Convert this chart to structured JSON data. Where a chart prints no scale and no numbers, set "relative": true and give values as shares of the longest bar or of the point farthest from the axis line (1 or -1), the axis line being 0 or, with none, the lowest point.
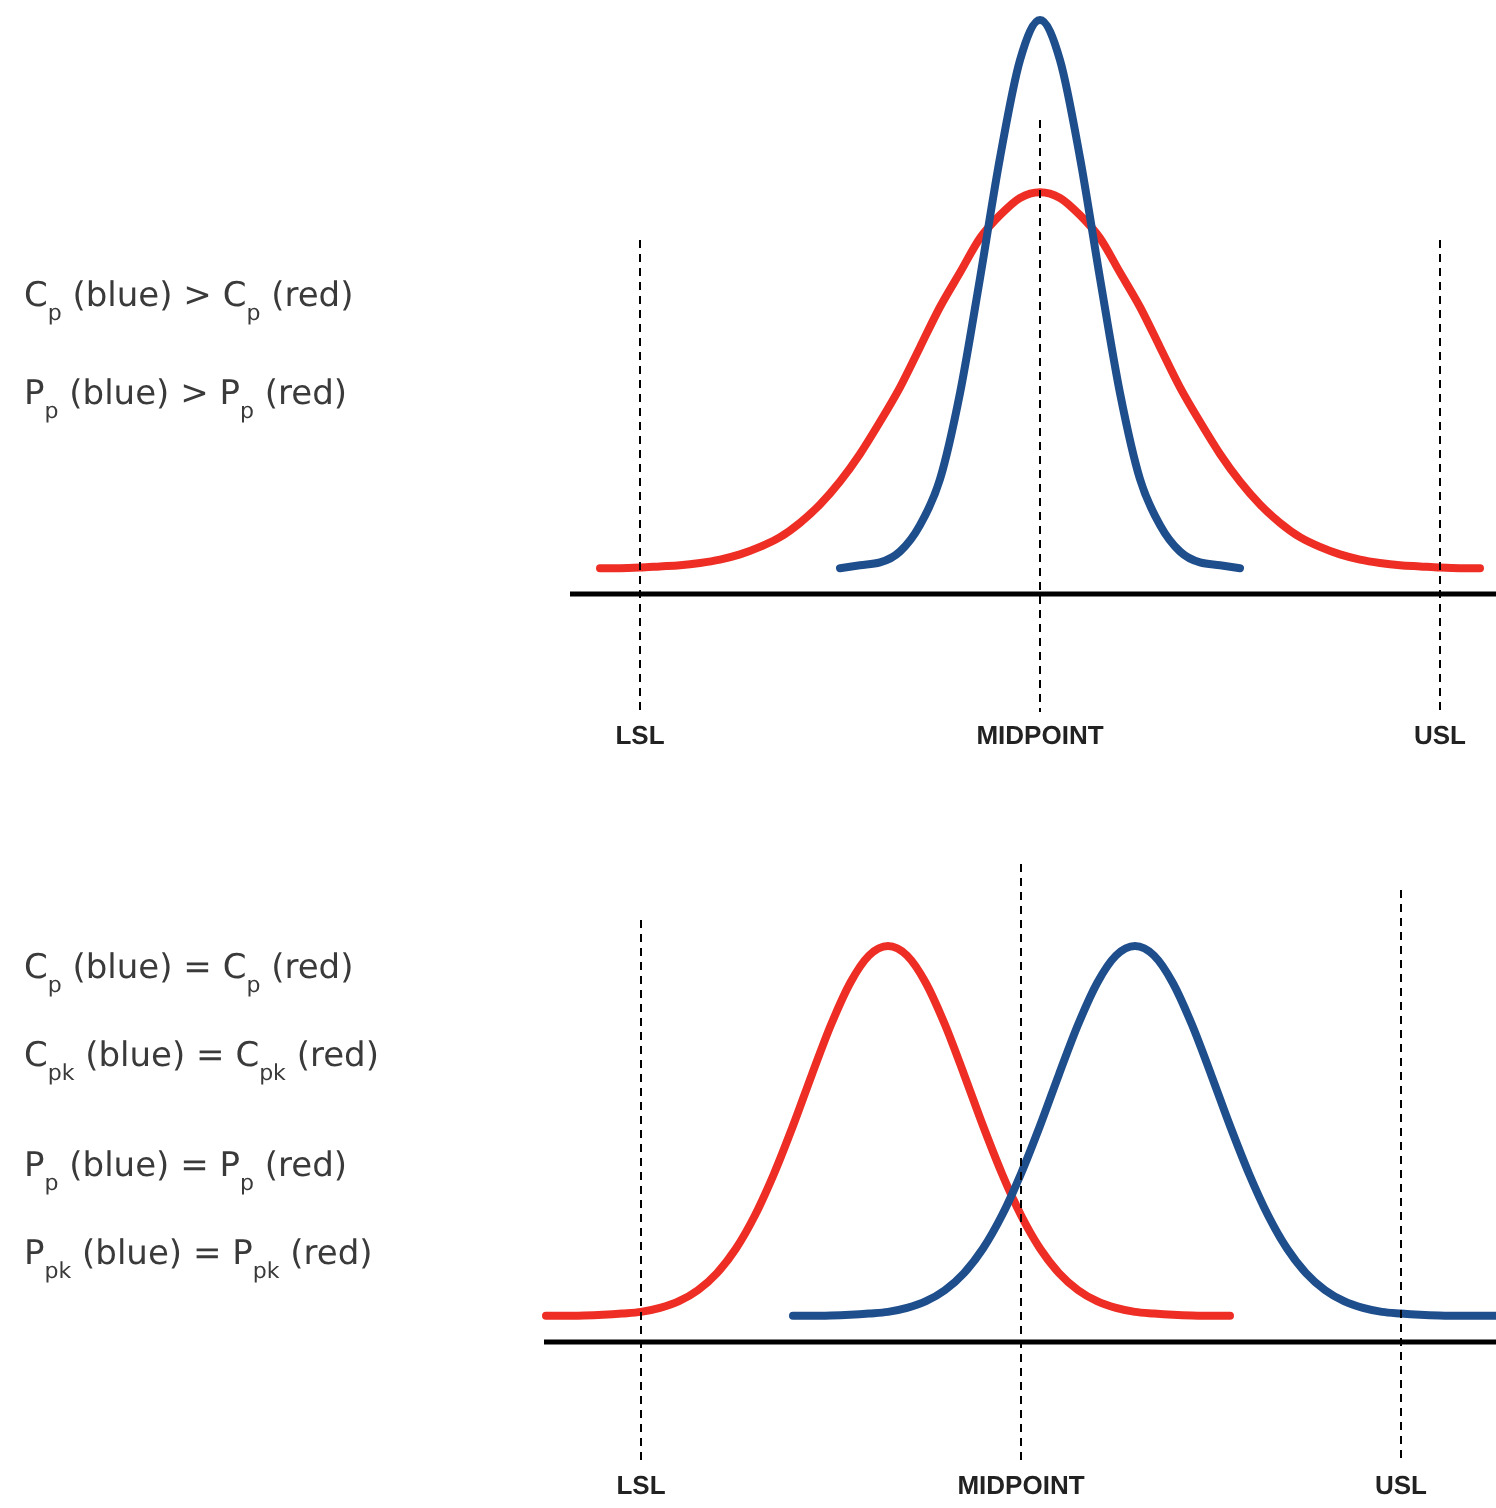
{
  "chart_data": [
    {
      "type": "line",
      "relative": true,
      "line_style": "solid",
      "marker": "none",
      "categories": [
        null,
        null,
        "LSL",
        null,
        null,
        null,
        null,
        null,
        null,
        null,
        null,
        null,
        null,
        null,
        null,
        null,
        null,
        null,
        null,
        null,
        null,
        null,
        "MIDPOINT",
        null,
        null,
        null,
        null,
        null,
        null,
        null,
        null,
        null,
        null,
        null,
        null,
        null,
        null,
        null,
        null,
        null,
        null,
        null,
        "USL",
        null,
        null
      ],
      "series": [
        {
          "color": "#ee2e24",
          "values": [
            0.045,
            0.045,
            0.046,
            0.048,
            0.05,
            0.054,
            0.06,
            0.069,
            0.082,
            0.099,
            0.124,
            0.156,
            0.196,
            0.244,
            0.3,
            0.36,
            0.43,
            0.5,
            0.56,
            0.62,
            0.66,
            0.69,
            0.7,
            0.69,
            0.66,
            0.62,
            0.56,
            0.5,
            0.43,
            0.36,
            0.3,
            0.244,
            0.196,
            0.156,
            0.124,
            0.099,
            0.082,
            0.069,
            0.06,
            0.054,
            0.05,
            0.048,
            0.046,
            0.045,
            0.045
          ]
        },
        {
          "color": "#1f4e8c",
          "values": [
            null,
            null,
            null,
            null,
            null,
            null,
            null,
            null,
            null,
            null,
            null,
            null,
            0.045,
            0.05,
            0.055,
            0.074,
            0.12,
            0.2,
            0.35,
            0.55,
            0.76,
            0.93,
            1,
            0.93,
            0.76,
            0.55,
            0.35,
            0.2,
            0.12,
            0.074,
            0.055,
            0.05,
            0.045,
            null,
            null,
            null,
            null,
            null,
            null,
            null,
            null,
            null,
            null,
            null,
            null
          ]
        }
      ],
      "ref_lines": [
        {
          "axis": "x",
          "value": "LSL",
          "color": "#000000",
          "line_style": "dashed"
        },
        {
          "axis": "x",
          "value": "MIDPOINT",
          "color": "#000000",
          "line_style": "dashed"
        },
        {
          "axis": "x",
          "value": "USL",
          "color": "#000000",
          "line_style": "dashed"
        }
      ],
      "annotations": [
        "C$_{p}$ (blue) > C$_{p}$ (red)",
        "P$_{p}$ (blue) > P$_{p}$ (red)"
      ]
    },
    {
      "type": "line",
      "relative": true,
      "line_style": "solid",
      "marker": "none",
      "categories": [
        null,
        null,
        null,
        null,
        null,
        "LSL",
        null,
        null,
        null,
        null,
        null,
        null,
        null,
        null,
        null,
        null,
        null,
        null,
        null,
        null,
        null,
        null,
        null,
        null,
        null,
        "MIDPOINT",
        null,
        null,
        null,
        null,
        null,
        null,
        null,
        null,
        null,
        null,
        null,
        null,
        null,
        null,
        null,
        null,
        null,
        null,
        null,
        "USL",
        null,
        null,
        null,
        null,
        null
      ],
      "series": [
        {
          "color": "#ee2e24",
          "values": [
            0.066,
            0.066,
            0.067,
            0.069,
            0.072,
            0.076,
            0.086,
            0.103,
            0.131,
            0.174,
            0.236,
            0.32,
            0.425,
            0.546,
            0.676,
            0.801,
            0.906,
            0.976,
            1,
            0.976,
            0.906,
            0.801,
            0.676,
            0.546,
            0.425,
            0.32,
            0.236,
            0.174,
            0.131,
            0.103,
            0.086,
            0.076,
            0.072,
            0.069,
            0.067,
            0.066,
            0.066,
            null,
            null,
            null,
            null,
            null,
            null,
            null,
            null,
            null,
            null,
            null,
            null,
            null,
            null
          ]
        },
        {
          "color": "#1f4e8c",
          "values": [
            null,
            null,
            null,
            null,
            null,
            null,
            null,
            null,
            null,
            null,
            null,
            null,
            null,
            0.066,
            0.066,
            0.067,
            0.069,
            0.072,
            0.076,
            0.086,
            0.103,
            0.131,
            0.174,
            0.236,
            0.32,
            0.425,
            0.546,
            0.676,
            0.801,
            0.906,
            0.976,
            1,
            0.976,
            0.906,
            0.801,
            0.676,
            0.546,
            0.425,
            0.32,
            0.236,
            0.174,
            0.131,
            0.103,
            0.086,
            0.076,
            0.072,
            0.069,
            0.067,
            0.066,
            0.066,
            0.066
          ]
        }
      ],
      "ref_lines": [
        {
          "axis": "x",
          "value": "LSL",
          "color": "#000000",
          "line_style": "dashed"
        },
        {
          "axis": "x",
          "value": "MIDPOINT",
          "color": "#000000",
          "line_style": "dashed"
        },
        {
          "axis": "x",
          "value": "USL",
          "color": "#000000",
          "line_style": "dashed"
        }
      ],
      "annotations": [
        "C$_{p}$ (blue) = C$_{p}$ (red)",
        "C$_{pk}$ (blue)  = C$_{pk}$ (red)",
        "P$_{p}$ (blue) = P$_{p}$ (red)",
        "P$_{pk}$ (blue) = P$_{pk}$ (red)"
      ]
    }
  ]
}
